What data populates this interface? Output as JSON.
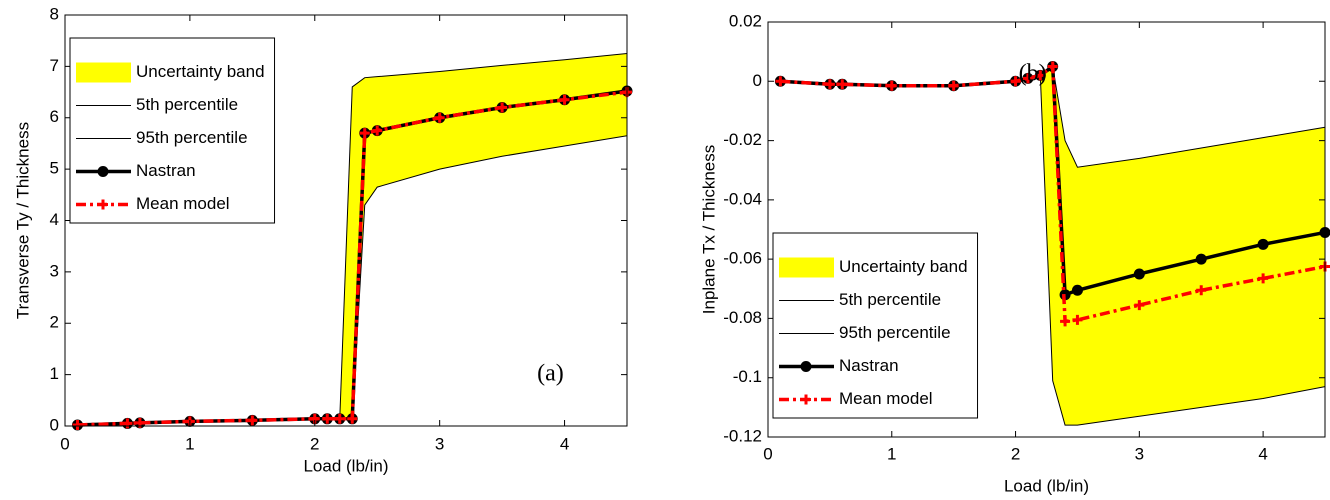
{
  "chart_data": [
    {
      "type": "line",
      "xlabel": "Load (lb/in)",
      "ylabel": "Transverse Ty / Thickness",
      "annotation": "(a)",
      "xlim": [
        0,
        4.5
      ],
      "xticks": [
        0,
        1,
        2,
        3,
        4
      ],
      "ylim": [
        0,
        8
      ],
      "yticks": [
        0,
        1,
        2,
        3,
        4,
        5,
        6,
        7,
        8
      ],
      "legend": "upper left",
      "x": [
        0.1,
        0.5,
        0.6,
        1.0,
        1.5,
        2.0,
        2.1,
        2.2,
        2.3,
        2.4,
        2.5,
        3.0,
        3.5,
        4.0,
        4.5
      ],
      "series": [
        {
          "name": "Uncertainty band",
          "color": "#ffff00",
          "kind": "band"
        },
        {
          "name": "5th percentile",
          "color": "#000000",
          "values": [
            0.02,
            0.05,
            0.06,
            0.09,
            0.11,
            0.14,
            0.14,
            0.14,
            0.14,
            4.3,
            4.65,
            5.0,
            5.25,
            5.45,
            5.65
          ]
        },
        {
          "name": "95th percentile",
          "color": "#000000",
          "values": [
            0.02,
            0.05,
            0.06,
            0.09,
            0.11,
            0.14,
            0.14,
            0.14,
            6.6,
            6.78,
            6.8,
            6.9,
            7.02,
            7.13,
            7.25
          ]
        },
        {
          "name": "Nastran",
          "color": "#000000",
          "marker": "o",
          "linestyle": "-",
          "values": [
            0.02,
            0.05,
            0.06,
            0.09,
            0.11,
            0.14,
            0.14,
            0.14,
            0.14,
            5.7,
            5.75,
            6.0,
            6.2,
            6.35,
            6.52
          ]
        },
        {
          "name": "Mean model",
          "color": "#ff0000",
          "marker": "+",
          "linestyle": "-.",
          "values": [
            0.02,
            0.05,
            0.06,
            0.09,
            0.11,
            0.14,
            0.14,
            0.14,
            0.14,
            5.7,
            5.75,
            6.0,
            6.2,
            6.35,
            6.5
          ]
        }
      ]
    },
    {
      "type": "line",
      "xlabel": "Load (lb/in)",
      "ylabel": "Inplane Tx / Thickness",
      "annotation": "(b)",
      "xlim": [
        0,
        4.5
      ],
      "xticks": [
        0,
        1,
        2,
        3,
        4
      ],
      "ylim": [
        -0.12,
        0.02
      ],
      "yticks": [
        -0.12,
        -0.1,
        -0.08,
        -0.06,
        -0.04,
        -0.02,
        0,
        0.02
      ],
      "legend": "lower left",
      "x": [
        0.1,
        0.5,
        0.6,
        1.0,
        1.5,
        2.0,
        2.1,
        2.2,
        2.3,
        2.4,
        2.5,
        3.0,
        3.5,
        4.0,
        4.5
      ],
      "series": [
        {
          "name": "Uncertainty band",
          "color": "#ffff00",
          "kind": "band"
        },
        {
          "name": "5th percentile",
          "color": "#000000",
          "values": [
            0,
            -0.001,
            -0.001,
            -0.0015,
            -0.0015,
            0,
            0.001,
            0.002,
            -0.101,
            -0.116,
            -0.116,
            -0.113,
            -0.11,
            -0.107,
            -0.103
          ]
        },
        {
          "name": "95th percentile",
          "color": "#000000",
          "values": [
            0,
            -0.001,
            -0.001,
            -0.0015,
            -0.0015,
            0,
            0.001,
            0.002,
            0.005,
            -0.02,
            -0.029,
            -0.026,
            -0.0225,
            -0.019,
            -0.0155
          ]
        },
        {
          "name": "Nastran",
          "color": "#000000",
          "marker": "o",
          "linestyle": "-",
          "values": [
            0,
            -0.001,
            -0.001,
            -0.0015,
            -0.0015,
            0,
            0.001,
            0.002,
            0.005,
            -0.072,
            -0.0705,
            -0.065,
            -0.06,
            -0.055,
            -0.051
          ]
        },
        {
          "name": "Mean model",
          "color": "#ff0000",
          "marker": "+",
          "linestyle": "-.",
          "values": [
            0,
            -0.001,
            -0.001,
            -0.0015,
            -0.0015,
            0,
            0.001,
            0.002,
            0.005,
            -0.081,
            -0.0805,
            -0.0755,
            -0.0705,
            -0.0665,
            -0.0625
          ]
        }
      ]
    }
  ]
}
